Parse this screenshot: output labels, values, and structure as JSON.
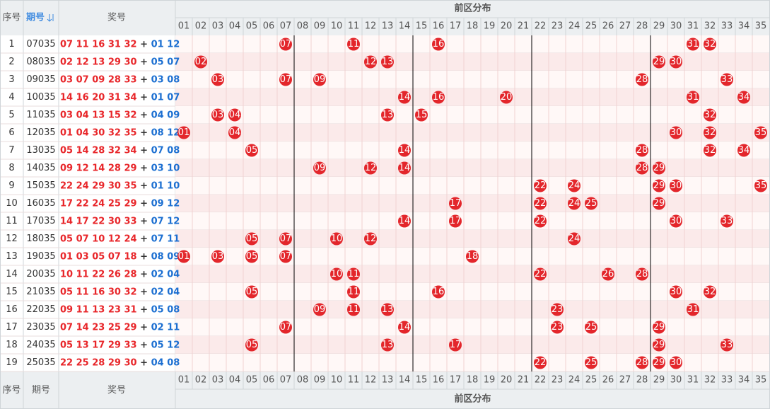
{
  "header": {
    "col_index": "序号",
    "col_issue": "期号",
    "col_numbers": "奖号",
    "zone": "前区分布",
    "numbers": [
      "01",
      "02",
      "03",
      "04",
      "05",
      "06",
      "07",
      "08",
      "09",
      "10",
      "11",
      "12",
      "13",
      "14",
      "15",
      "16",
      "17",
      "18",
      "19",
      "20",
      "21",
      "22",
      "23",
      "24",
      "25",
      "26",
      "27",
      "28",
      "29",
      "30",
      "31",
      "32",
      "33",
      "34",
      "35"
    ]
  },
  "separator": "+",
  "rows": [
    {
      "index": 1,
      "issue": "07035",
      "front": [
        "07",
        "11",
        "16",
        "31",
        "32"
      ],
      "back": [
        "01",
        "12"
      ]
    },
    {
      "index": 2,
      "issue": "08035",
      "front": [
        "02",
        "12",
        "13",
        "29",
        "30"
      ],
      "back": [
        "05",
        "07"
      ]
    },
    {
      "index": 3,
      "issue": "09035",
      "front": [
        "03",
        "07",
        "09",
        "28",
        "33"
      ],
      "back": [
        "03",
        "08"
      ]
    },
    {
      "index": 4,
      "issue": "10035",
      "front": [
        "14",
        "16",
        "20",
        "31",
        "34"
      ],
      "back": [
        "01",
        "07"
      ]
    },
    {
      "index": 5,
      "issue": "11035",
      "front": [
        "03",
        "04",
        "13",
        "15",
        "32"
      ],
      "back": [
        "04",
        "09"
      ]
    },
    {
      "index": 6,
      "issue": "12035",
      "front": [
        "01",
        "04",
        "30",
        "32",
        "35"
      ],
      "back": [
        "08",
        "12"
      ]
    },
    {
      "index": 7,
      "issue": "13035",
      "front": [
        "05",
        "14",
        "28",
        "32",
        "34"
      ],
      "back": [
        "07",
        "08"
      ]
    },
    {
      "index": 8,
      "issue": "14035",
      "front": [
        "09",
        "12",
        "14",
        "28",
        "29"
      ],
      "back": [
        "03",
        "10"
      ]
    },
    {
      "index": 9,
      "issue": "15035",
      "front": [
        "22",
        "24",
        "29",
        "30",
        "35"
      ],
      "back": [
        "01",
        "10"
      ]
    },
    {
      "index": 10,
      "issue": "16035",
      "front": [
        "17",
        "22",
        "24",
        "25",
        "29"
      ],
      "back": [
        "09",
        "12"
      ]
    },
    {
      "index": 11,
      "issue": "17035",
      "front": [
        "14",
        "17",
        "22",
        "30",
        "33"
      ],
      "back": [
        "07",
        "12"
      ]
    },
    {
      "index": 12,
      "issue": "18035",
      "front": [
        "05",
        "07",
        "10",
        "12",
        "24"
      ],
      "back": [
        "07",
        "11"
      ]
    },
    {
      "index": 13,
      "issue": "19035",
      "front": [
        "01",
        "03",
        "05",
        "07",
        "18"
      ],
      "back": [
        "08",
        "09"
      ]
    },
    {
      "index": 14,
      "issue": "20035",
      "front": [
        "10",
        "11",
        "22",
        "26",
        "28"
      ],
      "back": [
        "02",
        "04"
      ]
    },
    {
      "index": 15,
      "issue": "21035",
      "front": [
        "05",
        "11",
        "16",
        "30",
        "32"
      ],
      "back": [
        "02",
        "04"
      ]
    },
    {
      "index": 16,
      "issue": "22035",
      "front": [
        "09",
        "11",
        "13",
        "23",
        "31"
      ],
      "back": [
        "05",
        "08"
      ]
    },
    {
      "index": 17,
      "issue": "23035",
      "front": [
        "07",
        "14",
        "23",
        "25",
        "29"
      ],
      "back": [
        "02",
        "11"
      ]
    },
    {
      "index": 18,
      "issue": "24035",
      "front": [
        "05",
        "13",
        "17",
        "29",
        "33"
      ],
      "back": [
        "05",
        "12"
      ]
    },
    {
      "index": 19,
      "issue": "25035",
      "front": [
        "22",
        "25",
        "28",
        "29",
        "30"
      ],
      "back": [
        "04",
        "08"
      ]
    }
  ]
}
